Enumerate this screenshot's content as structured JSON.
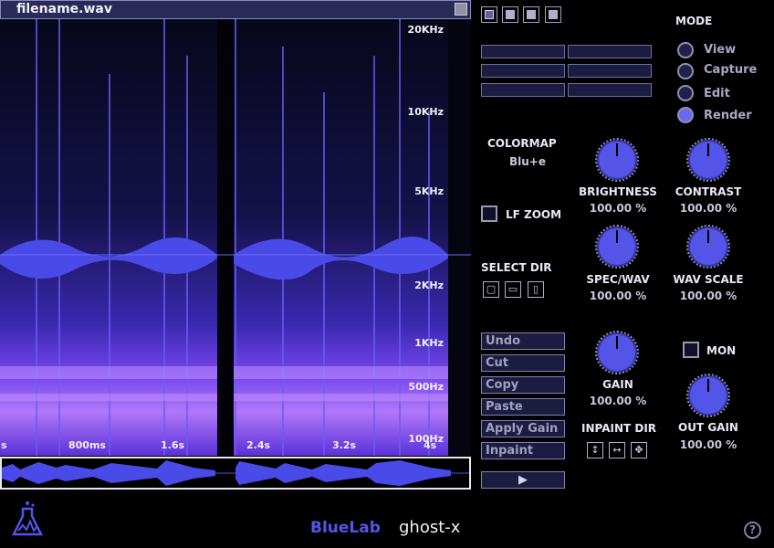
{
  "file": {
    "name": "filename.wav"
  },
  "freq_labels": [
    "20KHz",
    "10KHz",
    "5KHz",
    "2KHz",
    "1KHz",
    "500Hz",
    "100Hz"
  ],
  "time_labels": [
    "s",
    "800ms",
    "1.6s",
    "2.4s",
    "3.2s",
    "4s"
  ],
  "mode": {
    "title": "MODE",
    "options": [
      "View",
      "Capture",
      "Edit",
      "Render"
    ],
    "selected": "Render"
  },
  "colormap": {
    "title": "COLORMAP",
    "value": "Blu+e"
  },
  "lf_zoom": {
    "label": "LF ZOOM",
    "checked": false
  },
  "select_dir": {
    "label": "SELECT DIR"
  },
  "knobs": {
    "brightness": {
      "label": "BRIGHTNESS",
      "value": "100.00 %"
    },
    "contrast": {
      "label": "CONTRAST",
      "value": "100.00 %"
    },
    "spec_wav": {
      "label": "SPEC/WAV",
      "value": "100.00 %"
    },
    "wav_scale": {
      "label": "WAV SCALE",
      "value": "100.00 %"
    },
    "gain": {
      "label": "GAIN",
      "value": "100.00 %"
    },
    "out_gain": {
      "label": "OUT GAIN",
      "value": "100.00 %"
    }
  },
  "edit_buttons": [
    "Undo",
    "Cut",
    "Copy",
    "Paste",
    "Apply Gain",
    "Inpaint"
  ],
  "inpaint_dir": {
    "label": "INPAINT DIR"
  },
  "mon": {
    "label": "MON",
    "checked": false
  },
  "footer": {
    "brand": "BlueLab",
    "product": "ghost-x",
    "help": "?"
  },
  "colors": {
    "accent": "#5454e8",
    "spectrum": "#6a3cf0",
    "background": "#000000"
  }
}
